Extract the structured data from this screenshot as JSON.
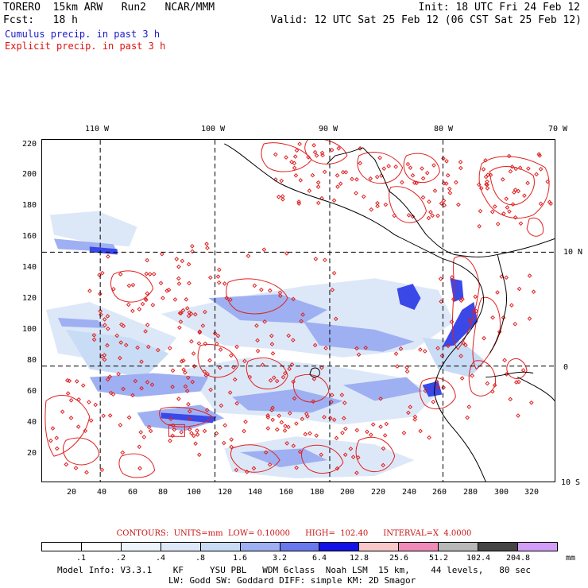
{
  "header": {
    "line1_left": "TORERO  15km ARW   Run2   NCAR/MMM",
    "line1_right": "Init: 18 UTC Fri 24 Feb 12",
    "line2_left": "Fcst:   18 h",
    "line2_right": "Valid: 12 UTC Sat 25 Feb 12 (06 CST Sat 25 Feb 12)",
    "legend_cumulus": "Cumulus precip. in past 3 h",
    "legend_explicit": "Explicit precip. in past 3 h"
  },
  "map": {
    "lon_labels": [
      "110 W",
      "100 W",
      "90 W",
      "80 W",
      "70 W"
    ],
    "lat_labels": [
      "10 N",
      "0",
      "10 S"
    ],
    "y_grid_labels": [
      "220",
      "200",
      "180",
      "160",
      "140",
      "120",
      "100",
      "80",
      "60",
      "40",
      "20"
    ],
    "x_grid_labels": [
      "20",
      "40",
      "60",
      "80",
      "100",
      "120",
      "140",
      "160",
      "180",
      "200",
      "220",
      "240",
      "260",
      "280",
      "300",
      "320"
    ],
    "x_range": [
      0,
      335
    ],
    "y_range": [
      0,
      225
    ],
    "meridians_x": [
      38,
      113,
      188,
      262
    ],
    "parallels_y": [
      151,
      76
    ],
    "colors": {
      "cumulus_light": "#c8dcf5",
      "cumulus_mid": "#8c9ff0",
      "cumulus_dark": "#3b48e8",
      "explicit": "#e02020",
      "coast": "#000000"
    }
  },
  "contours": {
    "text": "CONTOURS:  UNITS=mm  LOW= 0.10000      HIGH=  102.40      INTERVAL=X  4.0000"
  },
  "colorbar": {
    "unit": "mm",
    "labels": [
      ".1",
      ".2",
      ".4",
      ".8",
      "1.6",
      "3.2",
      "6.4",
      "12.8",
      "25.6",
      "51.2",
      "102.4",
      "204.8"
    ],
    "colors": [
      "#ffffff",
      "#ffffff",
      "#eef4fb",
      "#dde9f8",
      "#c8dcf5",
      "#9eb0f2",
      "#6a78ee",
      "#1212e8",
      "#f9c8c8",
      "#f08ab8",
      "#b8b8b8",
      "#444444",
      "#d29ef7"
    ]
  },
  "footer": {
    "line1": "Model Info: V3.3.1    KF     YSU PBL   WDM 6class  Noah LSM  15 km,    44 levels,   80 sec",
    "line2": "LW: Godd SW: Goddard DIFF: simple KM: 2D Smagor"
  }
}
